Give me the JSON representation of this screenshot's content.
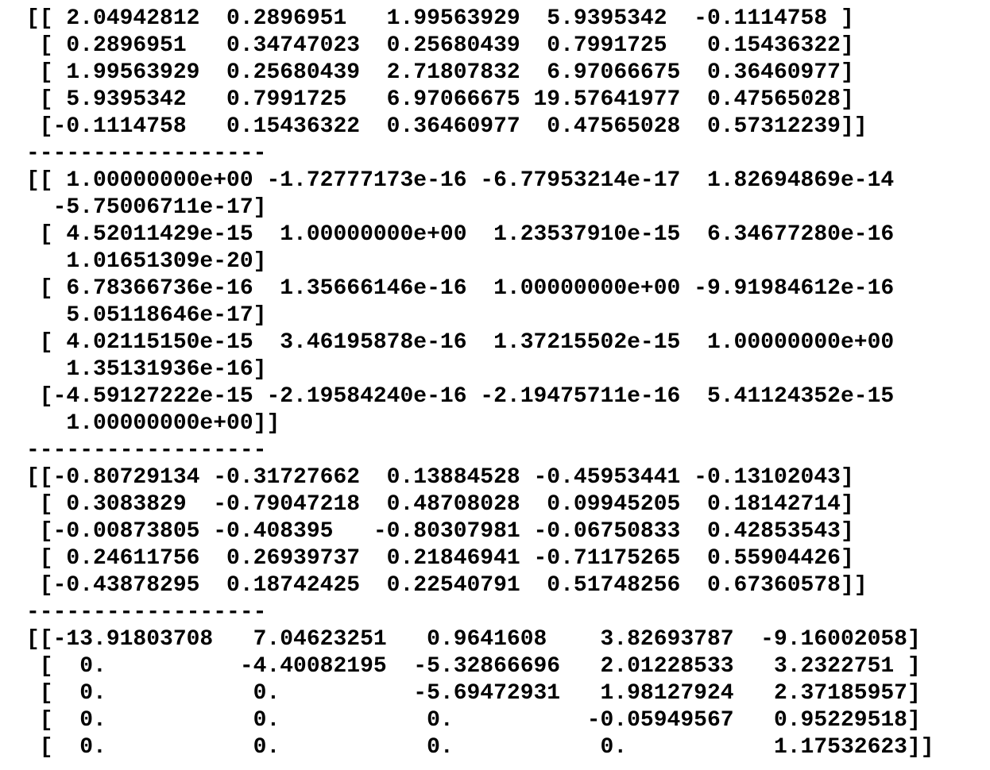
{
  "page": {
    "background": "#ffffff",
    "text_color": "#000000"
  },
  "output": {
    "separator": "------------------",
    "blocks": [
      {
        "id": "matrix-1",
        "lines": [
          "[[ 2.04942812  0.2896951   1.99563929  5.9395342  -0.1114758 ]",
          " [ 0.2896951   0.34747023  0.25680439  0.7991725   0.15436322]",
          " [ 1.99563929  0.25680439  2.71807832  6.97066675  0.36460977]",
          " [ 5.9395342   0.7991725   6.97066675 19.57641977  0.47565028]",
          " [-0.1114758   0.15436322  0.36460977  0.47565028  0.57312239]]"
        ]
      },
      {
        "id": "matrix-2",
        "lines": [
          "[[ 1.00000000e+00 -1.72777173e-16 -6.77953214e-17  1.82694869e-14",
          "  -5.75006711e-17]",
          " [ 4.52011429e-15  1.00000000e+00  1.23537910e-15  6.34677280e-16",
          "   1.01651309e-20]",
          " [ 6.78366736e-16  1.35666146e-16  1.00000000e+00 -9.91984612e-16",
          "   5.05118646e-17]",
          " [ 4.02115150e-15  3.46195878e-16  1.37215502e-15  1.00000000e+00",
          "   1.35131936e-16]",
          " [-4.59127222e-15 -2.19584240e-16 -2.19475711e-16  5.41124352e-15",
          "   1.00000000e+00]]"
        ]
      },
      {
        "id": "matrix-3",
        "lines": [
          "[[-0.80729134 -0.31727662  0.13884528 -0.45953441 -0.13102043]",
          " [ 0.3083829  -0.79047218  0.48708028  0.09945205  0.18142714]",
          " [-0.00873805 -0.408395   -0.80307981 -0.06750833  0.42853543]",
          " [ 0.24611756  0.26939737  0.21846941 -0.71175265  0.55904426]",
          " [-0.43878295  0.18742425  0.22540791  0.51748256  0.67360578]]"
        ]
      },
      {
        "id": "matrix-4",
        "lines": [
          "[[-13.91803708   7.04623251   0.9641608    3.82693787  -9.16002058]",
          " [  0.          -4.40082195  -5.32866696   2.01228533   3.2322751 ]",
          " [  0.           0.          -5.69472931   1.98127924   2.37185957]",
          " [  0.           0.           0.          -0.05949567   0.95229518]",
          " [  0.           0.           0.           0.           1.17532623]]"
        ]
      }
    ]
  }
}
